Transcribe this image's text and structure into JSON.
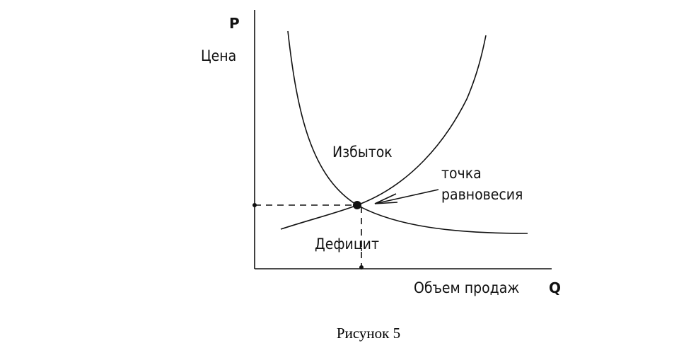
{
  "axes": {
    "y_symbol": "P",
    "y_label": "Цена",
    "x_label": "Объем продаж",
    "x_symbol": "Q"
  },
  "regions": {
    "surplus": "Избыток",
    "deficit": "Дефицит"
  },
  "annotation": {
    "lines": [
      "точка",
      "равновесия"
    ]
  },
  "caption": "Рисунок 5"
}
